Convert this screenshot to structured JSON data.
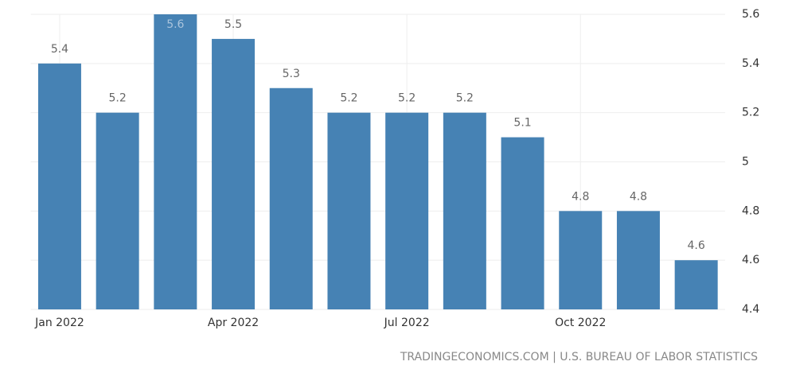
{
  "chart_data": {
    "type": "bar",
    "categories": [
      "Jan 2022",
      null,
      null,
      "Apr 2022",
      null,
      null,
      "Jul 2022",
      null,
      null,
      "Oct 2022",
      null,
      null
    ],
    "values": [
      5.4,
      5.2,
      5.6,
      5.5,
      5.3,
      5.2,
      5.2,
      5.2,
      5.1,
      4.8,
      4.8,
      4.6
    ],
    "color": "#4682b4",
    "ylim": [
      4.4,
      5.6
    ],
    "yticks": [
      4.4,
      4.6,
      4.8,
      5,
      5.2,
      5.4,
      5.6
    ],
    "y_axis_side": "right",
    "grid": true,
    "source": "TRADINGECONOMICS.COM | U.S. BUREAU OF LABOR STATISTICS"
  }
}
